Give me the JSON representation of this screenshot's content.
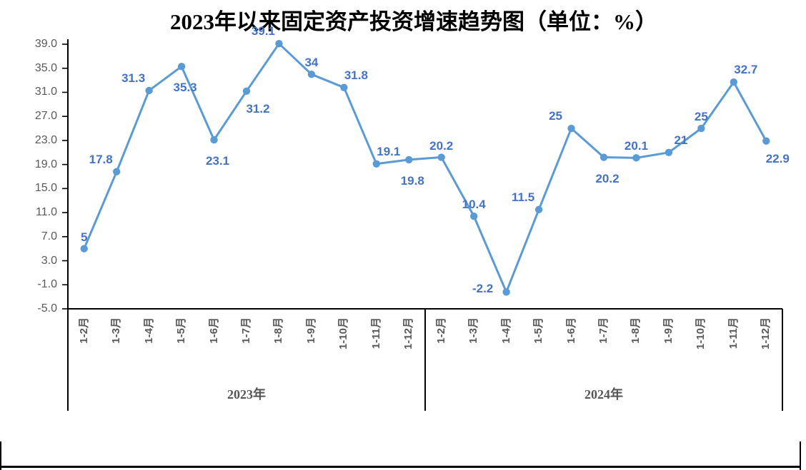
{
  "title": "2023年以来固定资产投资增速趋势图（单位：%）",
  "colors": {
    "line": "#5B9BD5",
    "marker": "#5B9BD5",
    "data_label": "#4472C4",
    "axis": "#000000",
    "tick_label": "#595959",
    "category_label": "#595959",
    "year_label": "#555555",
    "page_border": "#000000"
  },
  "chart_data": {
    "type": "line",
    "title": "2023年以来固定资产投资增速趋势图（单位：%）",
    "unit": "%",
    "grid": false,
    "legend": false,
    "y_axis": {
      "min": -5,
      "max": 39,
      "step": 4,
      "tick_labels": [
        "39.0",
        "35.0",
        "31.0",
        "27.0",
        "23.0",
        "19.0",
        "15.0",
        "11.0",
        "7.0",
        "3.0",
        "-1.0",
        "-5.0"
      ]
    },
    "groups": [
      {
        "year": "2023年",
        "categories": [
          "1-2月",
          "1-3月",
          "1-4月",
          "1-5月",
          "1-6月",
          "1-7月",
          "1-8月",
          "1-9月",
          "1-10月",
          "1-11月",
          "1-12月"
        ],
        "values": [
          5,
          17.8,
          31.3,
          35.3,
          23.1,
          31.2,
          39.1,
          34,
          31.8,
          19.1,
          19.8
        ],
        "labels": [
          "5",
          "17.8",
          "31.3",
          "35.3",
          "23.1",
          "31.2",
          "39.1",
          "34",
          "31.8",
          "19.1",
          "19.8"
        ],
        "label_pos": [
          "above",
          "above-left",
          "above-left",
          "below",
          "below",
          "below-right",
          "above-left",
          "above",
          "above-right",
          "above-right",
          "below"
        ]
      },
      {
        "year": "2024年",
        "categories": [
          "1-2月",
          "1-3月",
          "1-4月",
          "1-5月",
          "1-6月",
          "1-7月",
          "1-8月",
          "1-9月",
          "1-10月",
          "1-11月",
          "1-12月"
        ],
        "values": [
          20.2,
          10.4,
          -2.2,
          11.5,
          25,
          20.2,
          20.1,
          21,
          25,
          32.7,
          22.9
        ],
        "labels": [
          "20.2",
          "10.4",
          "-2.2",
          "11.5",
          "25",
          "20.2",
          "20.1",
          "21",
          "25",
          "32.7",
          "22.9"
        ],
        "label_pos": [
          "above",
          "above",
          "left",
          "above-left",
          "above-left",
          "below",
          "above",
          "above-right",
          "above",
          "above-right",
          "below-right"
        ]
      }
    ]
  }
}
